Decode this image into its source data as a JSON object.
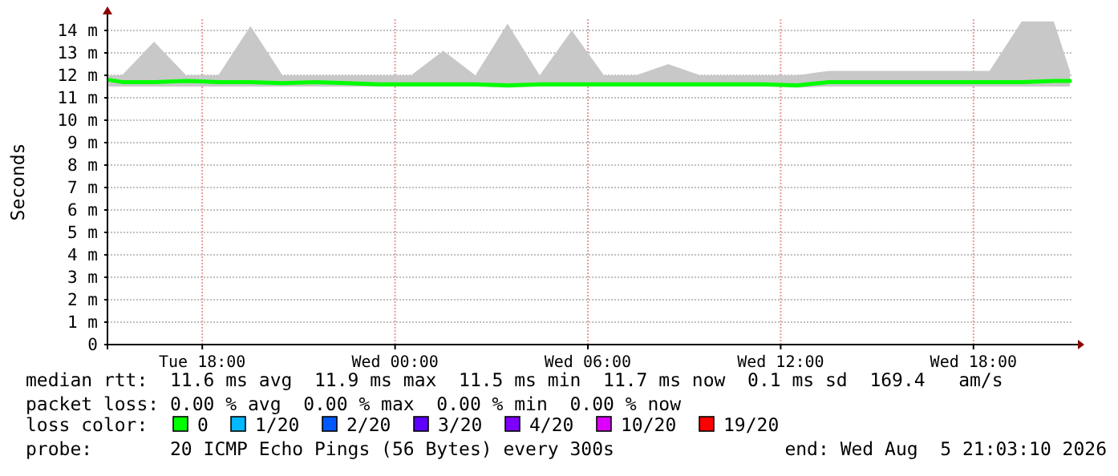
{
  "chart_data": {
    "type": "line",
    "ylabel": "Seconds",
    "legend_title": "loss color:",
    "legend": "bottom",
    "grid": true,
    "x": [
      "2026-08-04T15:05",
      "2026-08-04T15:30",
      "2026-08-04T16:30",
      "2026-08-04T17:30",
      "2026-08-04T18:30",
      "2026-08-04T19:30",
      "2026-08-04T20:30",
      "2026-08-04T21:30",
      "2026-08-04T22:30",
      "2026-08-04T23:30",
      "2026-08-05T00:30",
      "2026-08-05T01:30",
      "2026-08-05T02:30",
      "2026-08-05T03:30",
      "2026-08-05T04:30",
      "2026-08-05T05:30",
      "2026-08-05T06:30",
      "2026-08-05T07:30",
      "2026-08-05T08:30",
      "2026-08-05T09:30",
      "2026-08-05T10:30",
      "2026-08-05T11:30",
      "2026-08-05T12:30",
      "2026-08-05T13:30",
      "2026-08-05T14:30",
      "2026-08-05T15:30",
      "2026-08-05T16:30",
      "2026-08-05T17:30",
      "2026-08-05T18:30",
      "2026-08-05T19:30",
      "2026-08-05T20:30",
      "2026-08-05T21:00"
    ],
    "xlim": [
      "2026-08-04T15:03",
      "2026-08-05T21:03"
    ],
    "xticks": [
      {
        "value": "2026-08-04T18:00",
        "label": "Tue 18:00"
      },
      {
        "value": "2026-08-05T00:00",
        "label": "Wed 00:00"
      },
      {
        "value": "2026-08-05T06:00",
        "label": "Wed 06:00"
      },
      {
        "value": "2026-08-05T12:00",
        "label": "Wed 12:00"
      },
      {
        "value": "2026-08-05T18:00",
        "label": "Wed 18:00"
      }
    ],
    "ylim": [
      0,
      14.5
    ],
    "yticks": [
      0,
      {
        "value": 1,
        "label": "1 m"
      },
      {
        "value": 2,
        "label": "2 m"
      },
      {
        "value": 3,
        "label": "3 m"
      },
      {
        "value": 4,
        "label": "4 m"
      },
      {
        "value": 5,
        "label": "5 m"
      },
      {
        "value": 6,
        "label": "6 m"
      },
      {
        "value": 7,
        "label": "7 m"
      },
      {
        "value": 8,
        "label": "8 m"
      },
      {
        "value": 9,
        "label": "9 m"
      },
      {
        "value": 10,
        "label": "10 m"
      },
      {
        "value": 11,
        "label": "11 m"
      },
      {
        "value": 12,
        "label": "12 m"
      },
      {
        "value": 13,
        "label": "13 m"
      },
      {
        "value": 14,
        "label": "14 m"
      }
    ],
    "series": [
      {
        "name": "0",
        "color": "#00ff00",
        "values": [
          11.8,
          11.7,
          11.7,
          11.75,
          11.7,
          11.7,
          11.65,
          11.7,
          11.65,
          11.6,
          11.6,
          11.6,
          11.6,
          11.55,
          11.6,
          11.6,
          11.6,
          11.6,
          11.6,
          11.6,
          11.6,
          11.6,
          11.55,
          11.7,
          11.7,
          11.7,
          11.7,
          11.7,
          11.7,
          11.7,
          11.75,
          11.75
        ],
        "lower": [
          11.5,
          11.5,
          11.5,
          11.5,
          11.5,
          11.5,
          11.5,
          11.5,
          11.5,
          11.5,
          11.5,
          11.5,
          11.5,
          11.45,
          11.5,
          11.5,
          11.5,
          11.5,
          11.5,
          11.5,
          11.5,
          11.5,
          11.45,
          11.5,
          11.5,
          11.5,
          11.5,
          11.5,
          11.5,
          11.5,
          11.5,
          11.5
        ],
        "upper": [
          12.0,
          12.0,
          13.5,
          12.0,
          12.0,
          14.2,
          12.0,
          12.0,
          12.0,
          12.0,
          12.0,
          13.1,
          12.0,
          14.3,
          12.0,
          14.0,
          12.0,
          12.0,
          12.5,
          12.0,
          12.0,
          12.0,
          12.0,
          12.2,
          12.2,
          12.2,
          12.2,
          12.2,
          12.2,
          14.4,
          14.4,
          12.2
        ]
      },
      {
        "name": "1/20",
        "color": "#00b8ff",
        "values": [
          null,
          null,
          null,
          null,
          null,
          null,
          null,
          null,
          null,
          null,
          null,
          null,
          null,
          null,
          null,
          null,
          null,
          null,
          null,
          null,
          null,
          null,
          null,
          null,
          null,
          null,
          null,
          null,
          null,
          null,
          null,
          null
        ]
      },
      {
        "name": "2/20",
        "color": "#0059ff",
        "values": [
          null,
          null,
          null,
          null,
          null,
          null,
          null,
          null,
          null,
          null,
          null,
          null,
          null,
          null,
          null,
          null,
          null,
          null,
          null,
          null,
          null,
          null,
          null,
          null,
          null,
          null,
          null,
          null,
          null,
          null,
          null,
          null
        ]
      },
      {
        "name": "3/20",
        "color": "#5e00ff",
        "values": [
          null,
          null,
          null,
          null,
          null,
          null,
          null,
          null,
          null,
          null,
          null,
          null,
          null,
          null,
          null,
          null,
          null,
          null,
          null,
          null,
          null,
          null,
          null,
          null,
          null,
          null,
          null,
          null,
          null,
          null,
          null,
          null
        ]
      },
      {
        "name": "4/20",
        "color": "#7e00ff",
        "values": [
          null,
          null,
          null,
          null,
          null,
          null,
          null,
          null,
          null,
          null,
          null,
          null,
          null,
          null,
          null,
          null,
          null,
          null,
          null,
          null,
          null,
          null,
          null,
          null,
          null,
          null,
          null,
          null,
          null,
          null,
          null,
          null
        ]
      },
      {
        "name": "10/20",
        "color": "#dd00ff",
        "values": [
          null,
          null,
          null,
          null,
          null,
          null,
          null,
          null,
          null,
          null,
          null,
          null,
          null,
          null,
          null,
          null,
          null,
          null,
          null,
          null,
          null,
          null,
          null,
          null,
          null,
          null,
          null,
          null,
          null,
          null,
          null,
          null
        ]
      },
      {
        "name": "19/20",
        "color": "#ff0000",
        "values": [
          null,
          null,
          null,
          null,
          null,
          null,
          null,
          null,
          null,
          null,
          null,
          null,
          null,
          null,
          null,
          null,
          null,
          null,
          null,
          null,
          null,
          null,
          null,
          null,
          null,
          null,
          null,
          null,
          null,
          null,
          null,
          null
        ]
      }
    ],
    "annotations": [
      "median rtt:  11.6 ms avg  11.9 ms max  11.5 ms min  11.7 ms now  0.1 ms sd  169.4   am/s",
      "packet loss: 0.00 % avg  0.00 % max  0.00 % min  0.00 % now",
      "probe:       20 ICMP Echo Pings (56 Bytes) every 300s",
      "end: Wed Aug  5 21:03:10 2026"
    ]
  }
}
